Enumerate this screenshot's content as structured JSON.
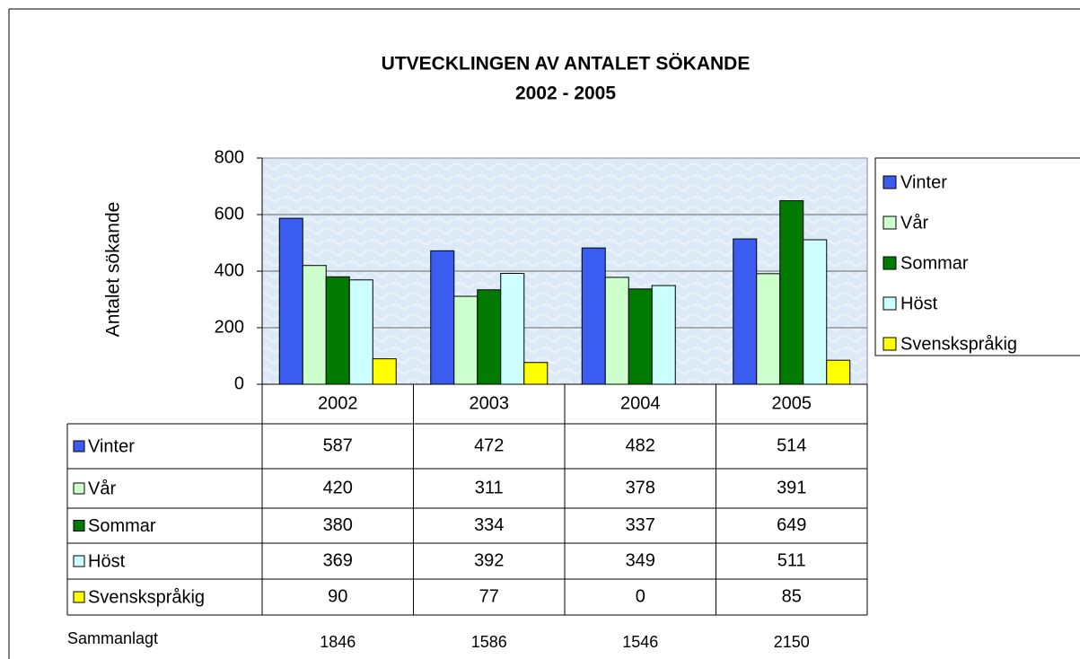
{
  "chart_data": {
    "type": "bar",
    "title": "UTVECKLINGEN AV ANTALET SÖKANDE",
    "subtitle": "2002 - 2005",
    "y_label": "Antalet sökande",
    "categories": [
      "2002",
      "2003",
      "2004",
      "2005"
    ],
    "series": [
      {
        "name": "Vinter",
        "color": "#3b5cf0",
        "values": [
          587,
          472,
          482,
          514
        ]
      },
      {
        "name": "Vår",
        "color": "#ccffcc",
        "values": [
          420,
          311,
          378,
          391
        ]
      },
      {
        "name": "Sommar",
        "color": "#007a00",
        "values": [
          380,
          334,
          337,
          649
        ]
      },
      {
        "name": "Höst",
        "color": "#ccffff",
        "values": [
          369,
          392,
          349,
          511
        ]
      },
      {
        "name": "Svenskspråkig",
        "color": "#ffff00",
        "values": [
          90,
          77,
          0,
          85
        ]
      }
    ],
    "ylim": [
      0,
      800
    ],
    "yticks": [
      0,
      200,
      400,
      600,
      800
    ],
    "grid": true,
    "legend": "right",
    "totals_label": "Sammanlagt",
    "totals": [
      1846,
      1586,
      1546,
      2150
    ]
  }
}
